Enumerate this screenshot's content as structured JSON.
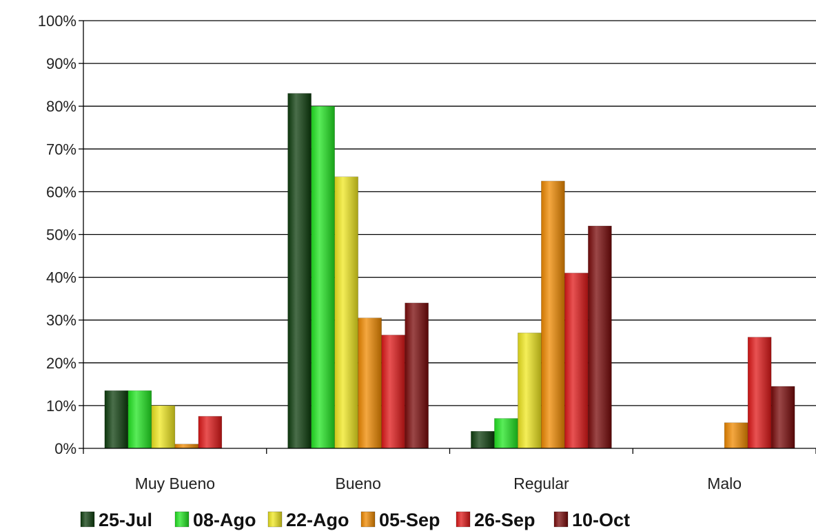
{
  "chart_data": {
    "type": "bar",
    "title": "",
    "xlabel": "",
    "ylabel": "",
    "categories": [
      "Muy Bueno",
      "Bueno",
      "Regular",
      "Malo"
    ],
    "ylim": [
      0,
      100
    ],
    "y_ticks": [
      "0%",
      "10%",
      "20%",
      "30%",
      "40%",
      "50%",
      "60%",
      "70%",
      "80%",
      "90%",
      "100%"
    ],
    "grid": true,
    "legend_position": "bottom",
    "series": [
      {
        "name": "25-Jul",
        "color": "#0d3d0d",
        "values": [
          13.5,
          83,
          4,
          0
        ]
      },
      {
        "name": "08-Ago",
        "color": "#22e622",
        "values": [
          13.5,
          80,
          7,
          0
        ]
      },
      {
        "name": "22-Ago",
        "color": "#f0e820",
        "values": [
          10,
          63.5,
          27,
          0
        ]
      },
      {
        "name": "05-Sep",
        "color": "#f08a00",
        "values": [
          1,
          30.5,
          62.5,
          6
        ]
      },
      {
        "name": "26-Sep",
        "color": "#e01818",
        "values": [
          7.5,
          26.5,
          41,
          26
        ]
      },
      {
        "name": "10-Oct",
        "color": "#7a0a0a",
        "values": [
          0,
          34,
          52,
          14.5
        ]
      }
    ]
  }
}
